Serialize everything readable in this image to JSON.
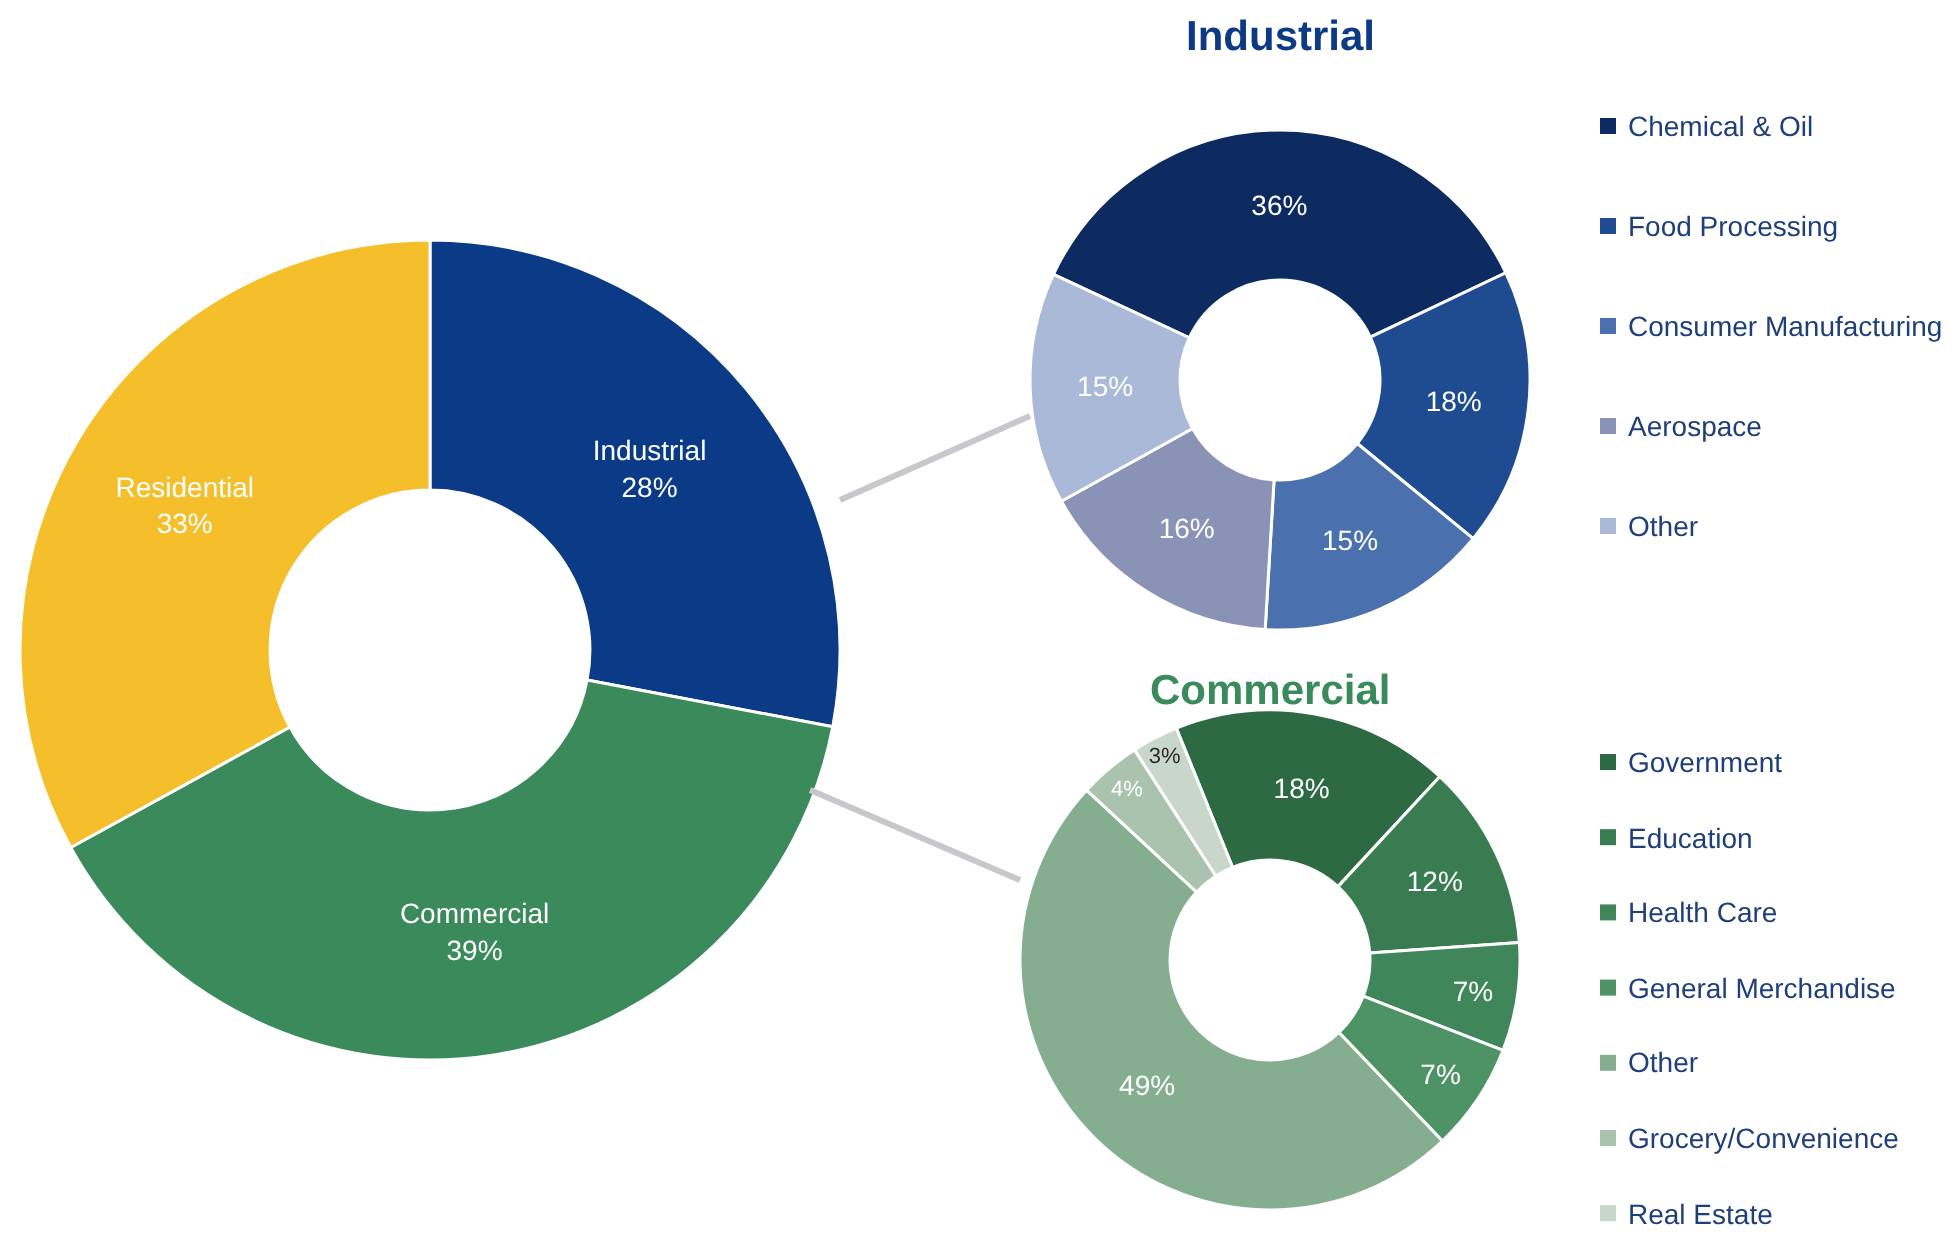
{
  "chart_data": [
    {
      "type": "donut",
      "categories": [
        "Industrial",
        "Commercial",
        "Residential"
      ],
      "values": [
        28,
        39,
        33
      ],
      "value_labels": [
        "28%",
        "39%",
        "33%"
      ],
      "colors": [
        "#0b3b86",
        "#3b8a5b",
        "#f4bf2a"
      ],
      "legend": false
    },
    {
      "type": "donut",
      "title": "Industrial",
      "categories": [
        "Chemical & Oil",
        "Food Processing",
        "Consumer Manufacturing",
        "Aerospace",
        "Other"
      ],
      "values": [
        36,
        18,
        15,
        16,
        15
      ],
      "value_labels": [
        "36%",
        "18%",
        "15%",
        "16%",
        "15%"
      ],
      "colors": [
        "#0d2b60",
        "#1f4b91",
        "#4b70ae",
        "#8a92b6",
        "#a9b9d7"
      ],
      "legend": "right"
    },
    {
      "type": "donut",
      "title": "Commercial",
      "categories": [
        "Government",
        "Education",
        "Health Care",
        "General Merchandise",
        "Other",
        "Grocery/Convenience",
        "Real Estate"
      ],
      "values": [
        18,
        12,
        7,
        7,
        49,
        4,
        3
      ],
      "value_labels": [
        "18%",
        "12%",
        "7%",
        "7%",
        "49%",
        "4%",
        "3%"
      ],
      "colors": [
        "#2d6a44",
        "#397c51",
        "#3f875a",
        "#4d9366",
        "#85ad90",
        "#a9c3ae",
        "#c9d7cb"
      ],
      "legend": "right"
    }
  ]
}
